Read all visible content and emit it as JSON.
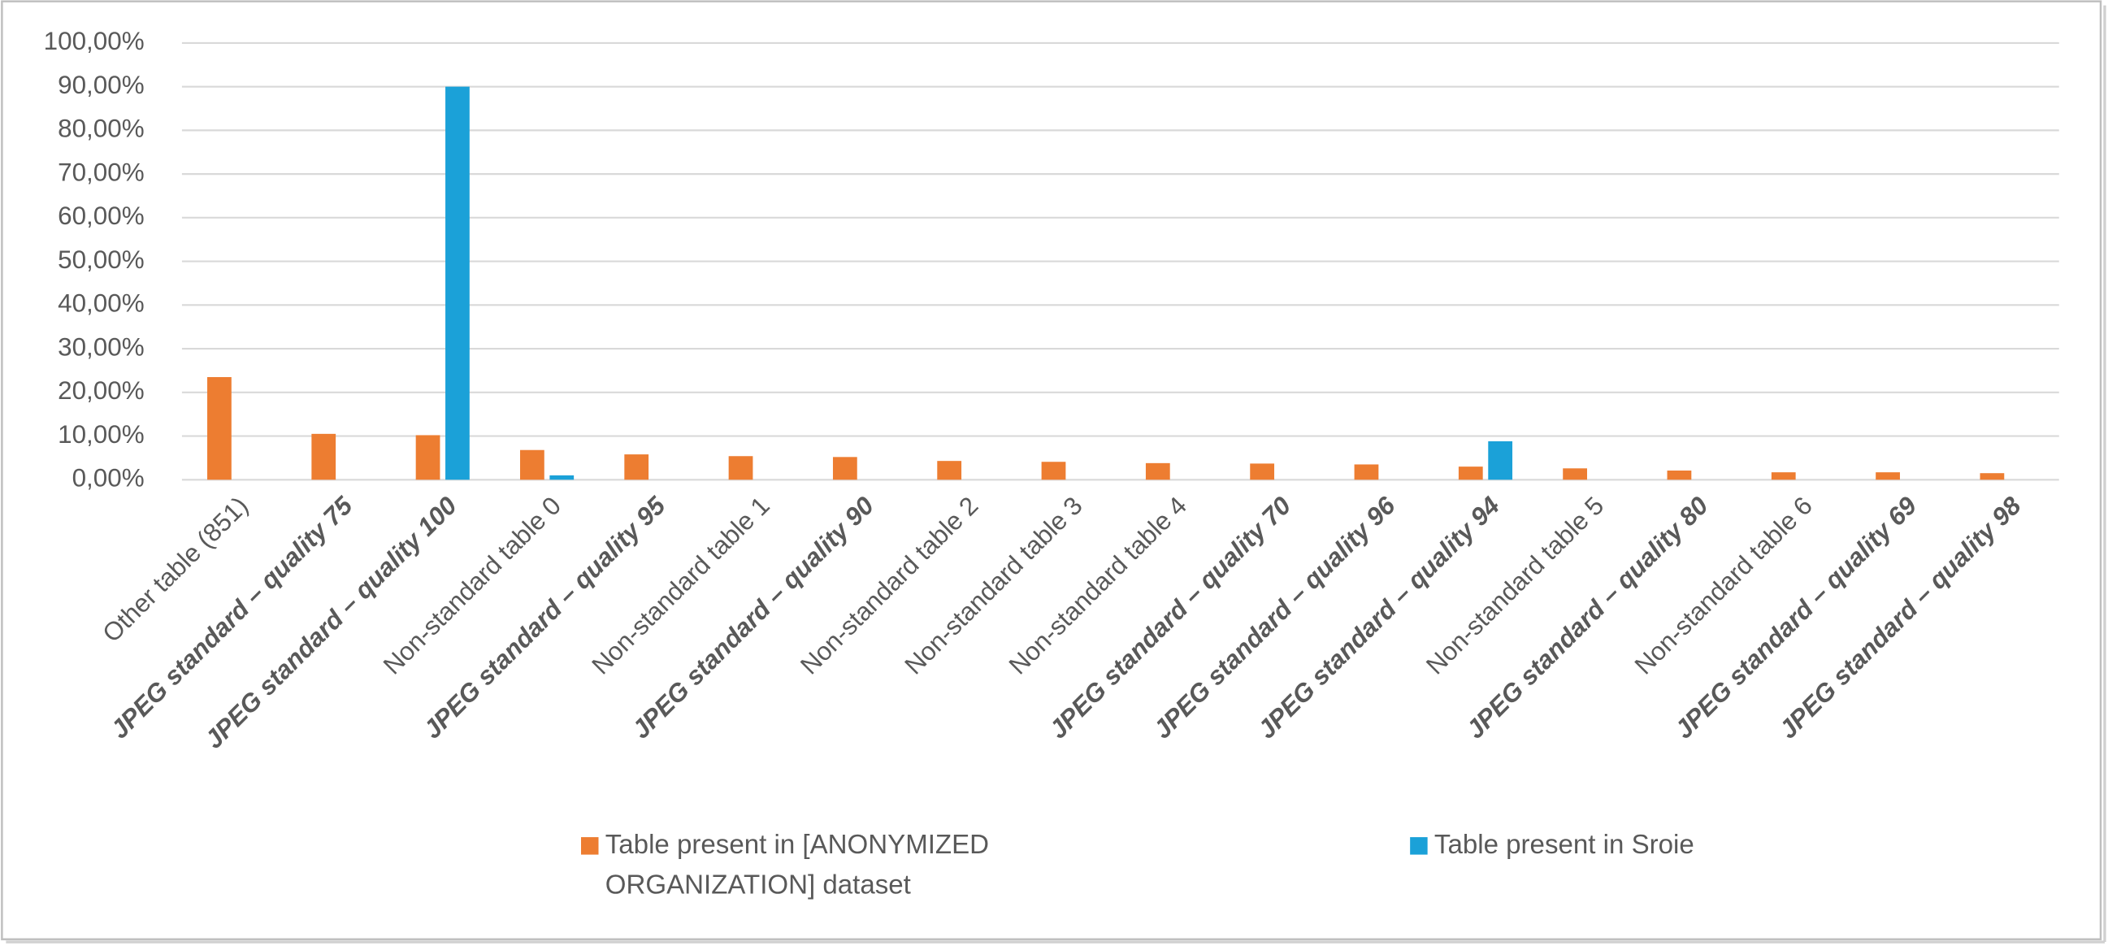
{
  "chart_data": {
    "type": "bar",
    "categories": [
      "Other table (851)",
      "JPEG standard – quality 75",
      "JPEG standard – quality 100",
      "Non-standard table 0",
      "JPEG standard – quality 95",
      "Non-standard table 1",
      "JPEG standard – quality 90",
      "Non-standard table 2",
      "Non-standard table 3",
      "Non-standard table 4",
      "JPEG standard – quality 70",
      "JPEG standard – quality 96",
      "JPEG standard – quality 94",
      "Non-standard table 5",
      "JPEG standard – quality 80",
      "Non-standard table 6",
      "JPEG standard – quality 69",
      "JPEG standard – quality 98"
    ],
    "bold_italic_categories": [
      false,
      true,
      true,
      false,
      true,
      false,
      true,
      false,
      false,
      false,
      true,
      true,
      true,
      false,
      true,
      false,
      true,
      true
    ],
    "series": [
      {
        "name": "Table present in [ANONYMIZED ORGANIZATION] dataset",
        "color": "#ed7d31",
        "values": [
          23.5,
          10.5,
          10.2,
          6.8,
          5.8,
          5.4,
          5.2,
          4.3,
          4.1,
          3.8,
          3.7,
          3.5,
          3.0,
          2.6,
          2.1,
          1.7,
          1.7,
          1.5
        ]
      },
      {
        "name": "Table present in Sroie",
        "color": "#1ba1d8",
        "values": [
          0,
          0,
          90,
          1.0,
          0,
          0,
          0,
          0,
          0,
          0,
          0,
          0,
          8.8,
          0,
          0,
          0,
          0,
          0
        ]
      }
    ],
    "ylim": [
      0,
      100
    ],
    "yticks": [
      {
        "value": 0,
        "label": "0,00%"
      },
      {
        "value": 10,
        "label": "10,00%"
      },
      {
        "value": 20,
        "label": "20,00%"
      },
      {
        "value": 30,
        "label": "30,00%"
      },
      {
        "value": 40,
        "label": "40,00%"
      },
      {
        "value": 50,
        "label": "50,00%"
      },
      {
        "value": 60,
        "label": "60,00%"
      },
      {
        "value": 70,
        "label": "70,00%"
      },
      {
        "value": 80,
        "label": "80,00%"
      },
      {
        "value": 90,
        "label": "90,00%"
      },
      {
        "value": 100,
        "label": "100,00%"
      }
    ],
    "grid": true,
    "legend": "bottom"
  }
}
